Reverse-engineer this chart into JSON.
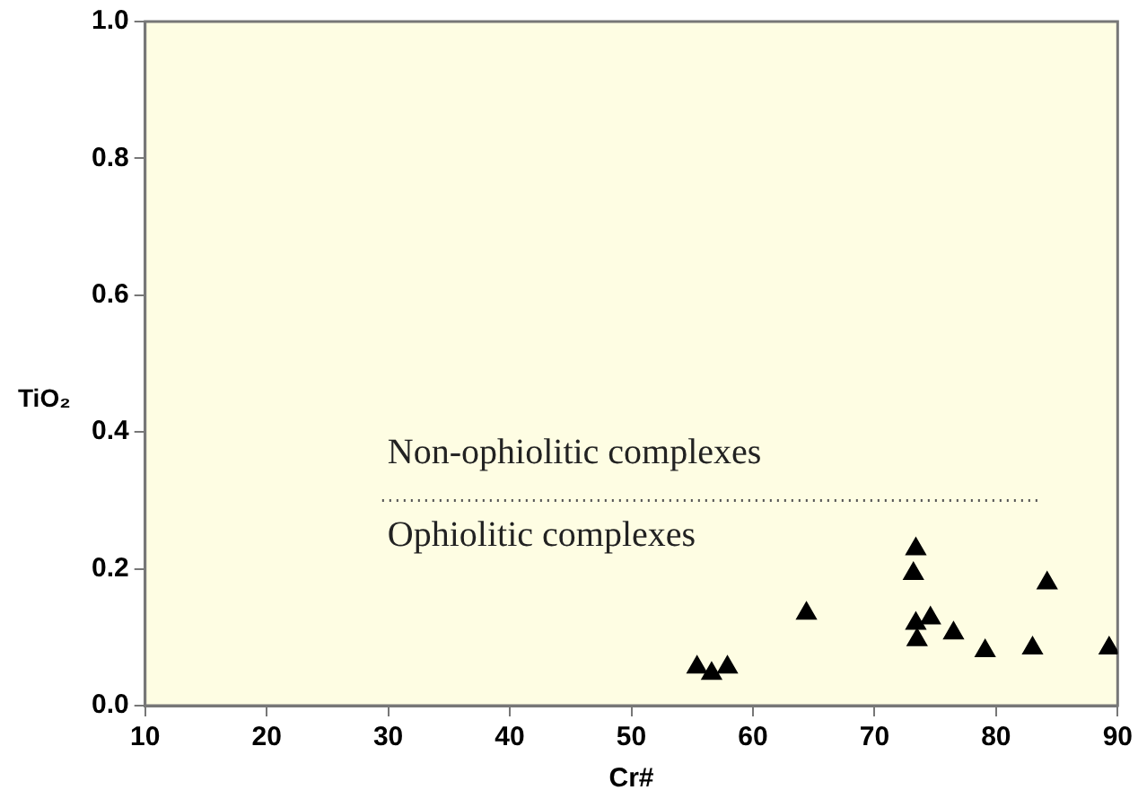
{
  "chart_data": {
    "type": "scatter",
    "xlabel": "Cr#",
    "ylabel": "TiO₂",
    "series": [
      {
        "color": "#000000",
        "marker": "triangle",
        "x": [
          55.4,
          56.6,
          57.9,
          64.4,
          73.4,
          73.2,
          73.4,
          74.6,
          73.5,
          76.5,
          79.1,
          83.0,
          84.2,
          89.3
        ],
        "values": [
          0.056,
          0.047,
          0.056,
          0.135,
          0.229,
          0.193,
          0.12,
          0.128,
          0.096,
          0.106,
          0.08,
          0.084,
          0.179,
          0.084
        ]
      },
      {
        "type": "line",
        "color": "#555555",
        "marker": "none",
        "line_style": "dotted",
        "x": [
          29.5,
          83.6
        ],
        "values": [
          0.3,
          0.3
        ]
      }
    ],
    "annotations": [
      "Non-ophiolitic complexes",
      "Ophiolitic complexes"
    ],
    "xlim": [
      10,
      90
    ],
    "xticks": [
      10,
      20,
      30,
      40,
      50,
      60,
      70,
      80,
      90
    ],
    "ylim": [
      0,
      1
    ],
    "yticks": [
      {
        "value": 0,
        "label": "0.0"
      },
      {
        "value": 0.2,
        "label": "0.2"
      },
      {
        "value": 0.4,
        "label": "0.4"
      },
      {
        "value": 0.6,
        "label": "0.6"
      },
      {
        "value": 0.8,
        "label": "0.8"
      },
      {
        "value": 1,
        "label": "1.0"
      }
    ],
    "grid": false,
    "legend": false
  }
}
